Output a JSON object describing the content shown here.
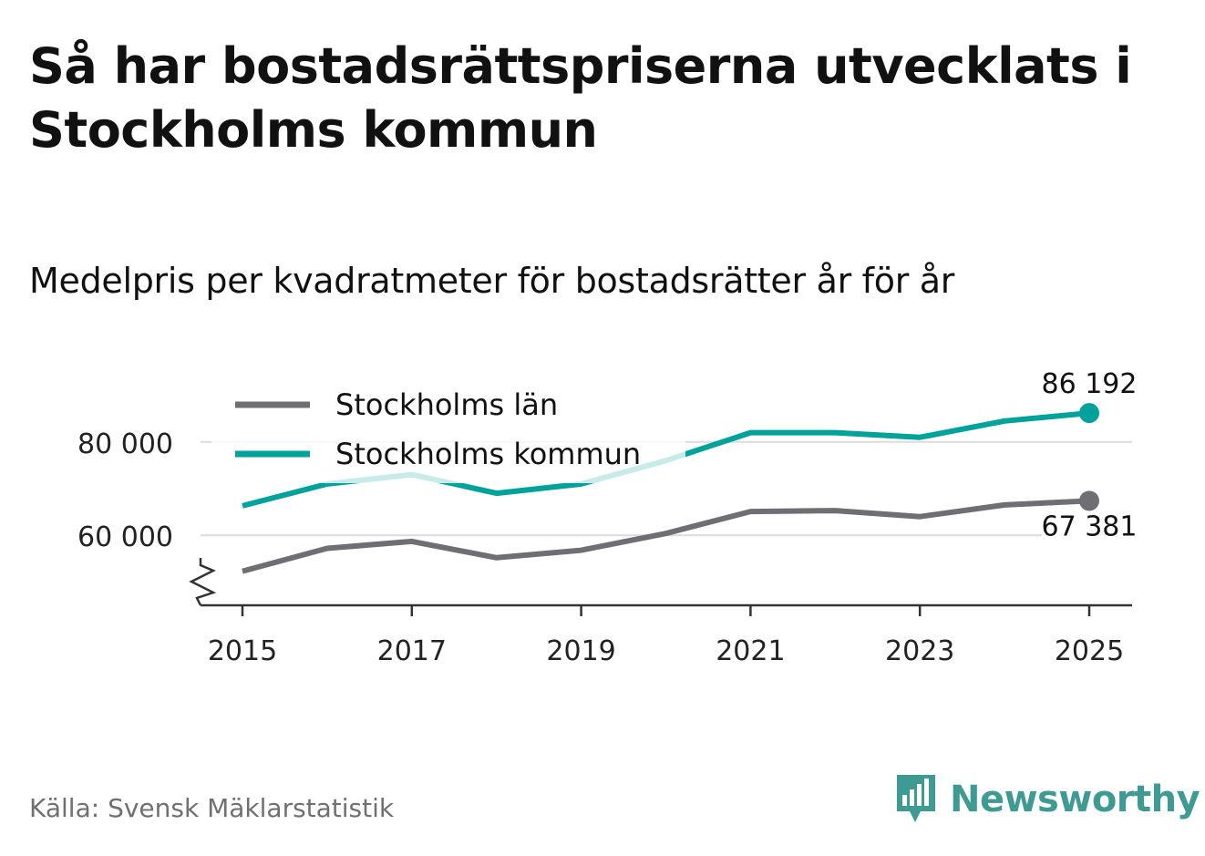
{
  "title": "Så har bostadsrättspriserna utvecklats i Stockholms kommun",
  "subtitle": "Medelpris per kvadratmeter för bostadsrätter år för år",
  "source": "Källa: Svensk Mäklarstatistik",
  "brand": "Newsworthy",
  "colors": {
    "kommun": "#00a29b",
    "lan": "#6f6e75",
    "grid": "#dcdcdc",
    "axis": "#333333",
    "brand": "#3f9a93"
  },
  "chart_data": {
    "type": "line",
    "title": "Så har bostadsrättspriserna utvecklats i Stockholms kommun",
    "subtitle": "Medelpris per kvadratmeter för bostadsrätter år för år",
    "xlabel": "",
    "ylabel": "",
    "x": [
      2015,
      2016,
      2017,
      2018,
      2019,
      2020,
      2021,
      2022,
      2023,
      2024,
      2025
    ],
    "x_ticks": [
      "2015",
      "2017",
      "2019",
      "2021",
      "2023",
      "2025"
    ],
    "y_ticks": [
      {
        "value": 60000,
        "label": "60 000"
      },
      {
        "value": 80000,
        "label": "80 000"
      }
    ],
    "ylim": [
      45000,
      90000
    ],
    "grid": true,
    "legend_position": "top-left",
    "series": [
      {
        "key": "lan",
        "name": "Stockholms län",
        "values": [
          52300,
          57200,
          58700,
          55200,
          56800,
          60400,
          65100,
          65300,
          64000,
          66500,
          67381
        ],
        "end_label": "67 381"
      },
      {
        "key": "kommun",
        "name": "Stockholms kommun",
        "values": [
          66300,
          71000,
          73000,
          69000,
          71000,
          76000,
          82000,
          82000,
          81000,
          84500,
          86192
        ],
        "end_label": "86 192"
      }
    ]
  }
}
